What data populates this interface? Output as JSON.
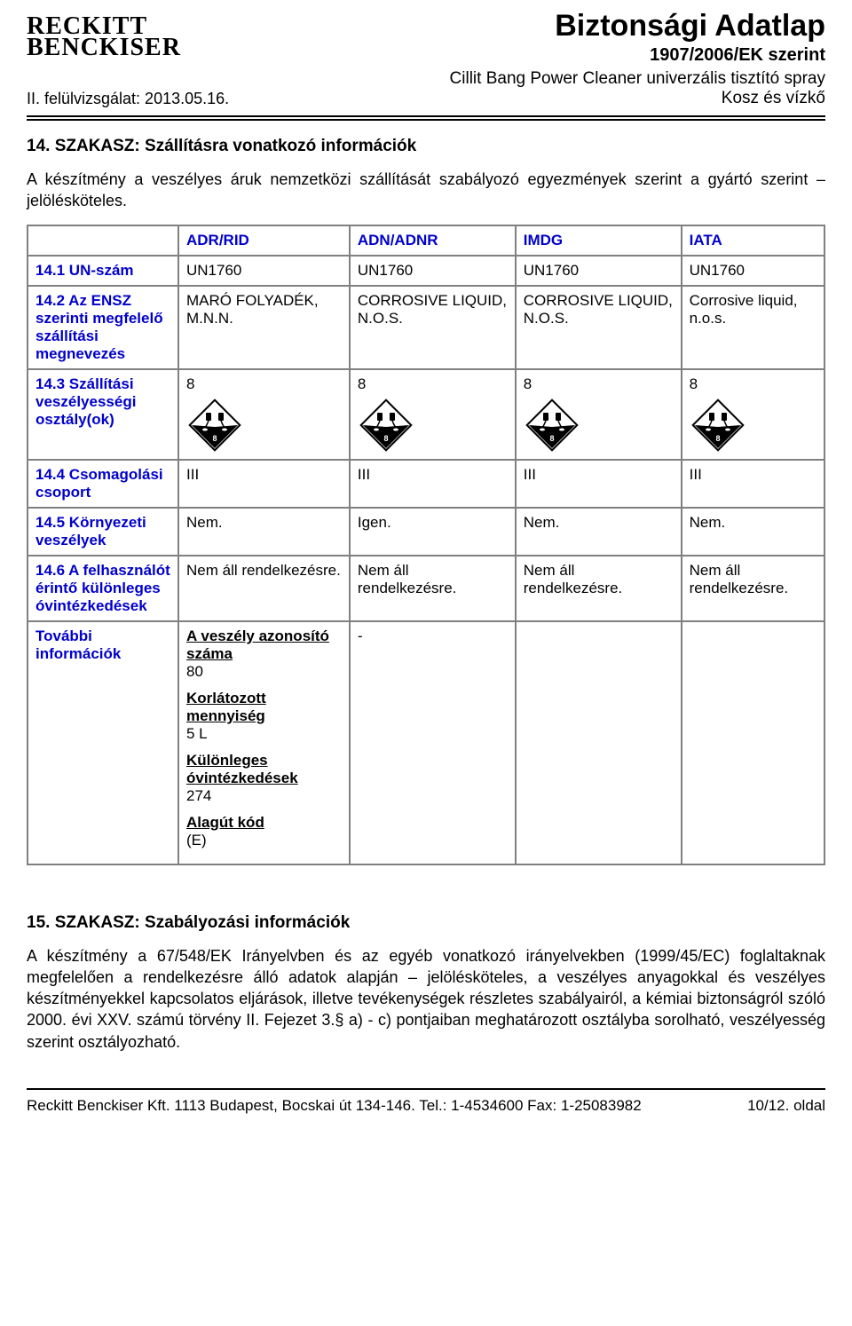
{
  "header": {
    "logo_line1": "RECKITT",
    "logo_line2": "BENCKISER",
    "sds_title": "Biztonsági Adatlap",
    "ek_line": "1907/2006/EK szerint",
    "revision": "II. felülvizsgálat: 2013.05.16.",
    "product_line1": "Cillit Bang Power Cleaner univerzális tisztító spray",
    "product_line2": "Kosz és vízkő"
  },
  "section14": {
    "title": "14. SZAKASZ: Szállításra vonatkozó információk",
    "intro": "A készítmény a veszélyes áruk nemzetközi szállítását szabályozó egyezmények szerint a gyártó szerint – jelölésköteles.",
    "table": {
      "col_headers": [
        "",
        "ADR/RID",
        "ADN/ADNR",
        "IMDG",
        "IATA"
      ],
      "rows": [
        {
          "label": "14.1 UN-szám",
          "cells": [
            "UN1760",
            "UN1760",
            "UN1760",
            "UN1760"
          ]
        },
        {
          "label": "14.2 Az ENSZ szerinti megfelelő szállítási megnevezés",
          "cells": [
            "MARÓ FOLYADÉK, M.N.N.",
            "CORROSIVE LIQUID, N.O.S.",
            "CORROSIVE LIQUID, N.O.S.",
            "Corrosive liquid, n.o.s."
          ]
        },
        {
          "label": "14.3 Szállítási veszélyességi osztály(ok)",
          "cells": [
            "8",
            "8",
            "8",
            "8"
          ],
          "diamond": true
        },
        {
          "label": "14.4 Csomagolási csoport",
          "cells": [
            "III",
            "III",
            "III",
            "III"
          ]
        },
        {
          "label": "14.5 Környezeti veszélyek",
          "cells": [
            "Nem.",
            "Igen.",
            "Nem.",
            "Nem."
          ]
        },
        {
          "label": "14.6 A felhasználót érintő különleges óvintézkedések",
          "cells": [
            "Nem áll rendelkezésre.",
            "Nem áll rendelkezésre.",
            "Nem áll rendelkezésre.",
            "Nem áll rendelkezésre."
          ]
        },
        {
          "label": "További információk",
          "cells": [
            "__STRUCTURED__",
            "-",
            "",
            ""
          ]
        }
      ],
      "further_info": [
        {
          "heading": "A veszély azonosító száma",
          "value": "80"
        },
        {
          "heading": "Korlátozott mennyiség",
          "value": "5 L"
        },
        {
          "heading": "Különleges óvintézkedések",
          "value": "274"
        },
        {
          "heading": "Alagút kód",
          "value": "(E)"
        }
      ]
    }
  },
  "section15": {
    "title": "15. SZAKASZ: Szabályozási információk",
    "body": "A készítmény a 67/548/EK Irányelvben és az egyéb vonatkozó irányelvekben (1999/45/EC) foglaltaknak megfelelően a rendelkezésre álló adatok alapján – jelölésköteles, a veszélyes anyagokkal és veszélyes készítményekkel kapcsolatos eljárások, illetve tevékenységek részletes szabályairól, a kémiai biztonságról szóló 2000. évi XXV. számú törvény II. Fejezet 3.§ a) - c) pontjaiban meghatározott osztályba sorolható, veszélyesség szerint osztályozható."
  },
  "footer": {
    "left": "Reckitt Benckiser Kft.  1113 Budapest, Bocskai út 134-146.  Tel.: 1-4534600   Fax: 1-25083982",
    "right": "10/12. oldal"
  },
  "colors": {
    "text": "#000000",
    "header_blue": "#0000cc",
    "border_gray": "#808080",
    "diamond_fill": "#000000",
    "diamond_inner": "#ffffff"
  }
}
